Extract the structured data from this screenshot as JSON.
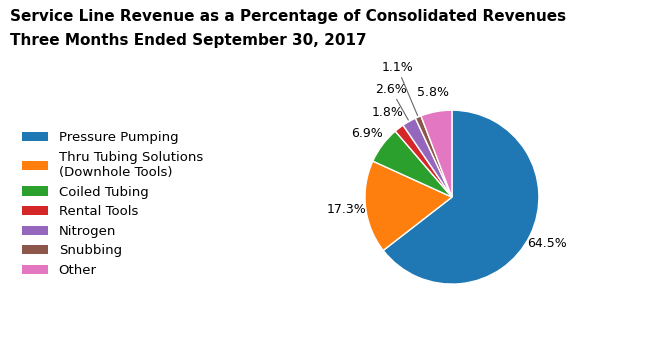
{
  "chart_data": {
    "type": "pie",
    "title": "Service Line Revenue as a Percentage of Consolidated Revenues",
    "subtitle": "Three Months Ended September 30, 2017",
    "categories": [
      "Pressure Pumping",
      "Thru Tubing Solutions\n(Downhole Tools)",
      "Coiled Tubing",
      "Rental Tools",
      "Nitrogen",
      "Snubbing",
      "Other"
    ],
    "values": [
      64.5,
      17.3,
      6.9,
      1.8,
      2.6,
      1.1,
      5.8
    ],
    "value_labels": [
      "64.5%",
      "17.3%",
      "6.9%",
      "1.8%",
      "2.6%",
      "1.1%",
      "5.8%"
    ],
    "data_labels": true,
    "legend": "center left"
  }
}
